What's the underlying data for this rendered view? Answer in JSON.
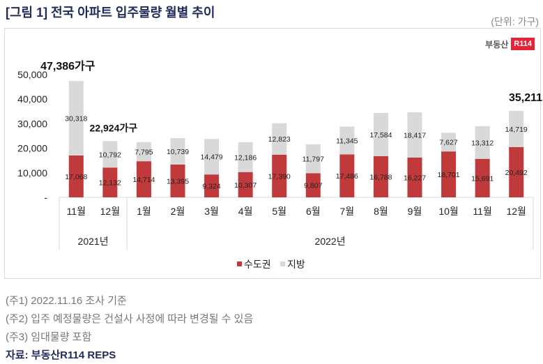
{
  "title": "[그림 1] 전국 아파트 입주물량 월별 추이",
  "unit": "(단위: 가구)",
  "logo": {
    "text": "부동산",
    "badge": "R114"
  },
  "chart_data": {
    "type": "bar",
    "stacked": true,
    "categories": [
      "11월",
      "12월",
      "1월",
      "2월",
      "3월",
      "4월",
      "5월",
      "6월",
      "7월",
      "8월",
      "9월",
      "10월",
      "11월",
      "12월"
    ],
    "groups": [
      {
        "label": "2021년",
        "count": 2
      },
      {
        "label": "2022년",
        "count": 12
      }
    ],
    "series": [
      {
        "name": "수도권",
        "color": "#c0393b",
        "values": [
          17068,
          12132,
          14714,
          13395,
          9324,
          10307,
          17390,
          9807,
          17486,
          16788,
          16227,
          18701,
          15691,
          20492
        ]
      },
      {
        "name": "지방",
        "color": "#d9d9d9",
        "values": [
          30318,
          10792,
          7795,
          10739,
          14479,
          12186,
          12823,
          11797,
          11345,
          17584,
          18417,
          7627,
          13312,
          14719
        ]
      }
    ],
    "value_labels": [
      "17,068",
      "12,132",
      "14,714",
      "13,395",
      "9,324",
      "10,307",
      "17,390",
      "9,807",
      "17,486",
      "16,788",
      "16,227",
      "18,701",
      "15,691",
      "20,492"
    ],
    "value_labels_2": [
      "30,318",
      "10,792",
      "7,795",
      "10,739",
      "14,479",
      "12,186",
      "12,823",
      "11,797",
      "11,345",
      "17,584",
      "18,417",
      "7,627",
      "13,312",
      "14,719"
    ],
    "annotations": [
      {
        "index": 0,
        "text": "47,386가구"
      },
      {
        "index": 1,
        "text": "22,924가구"
      },
      {
        "index": 13,
        "text": "35,211가구"
      }
    ],
    "yticks": [
      0,
      10000,
      20000,
      30000,
      40000,
      50000
    ],
    "ytick_labels": [
      "-",
      "10,000",
      "20,000",
      "30,000",
      "40,000",
      "50,000"
    ],
    "ylim": [
      0,
      50000
    ],
    "legend": "bottom"
  },
  "notes": [
    "(주1) 2022.11.16 조사 기준",
    "(주2) 입주 예정물량은 건설사 사정에 따라 변경될 수 있음",
    "(주3) 임대물량 포함"
  ],
  "source": "자료: 부동산R114 REPS"
}
